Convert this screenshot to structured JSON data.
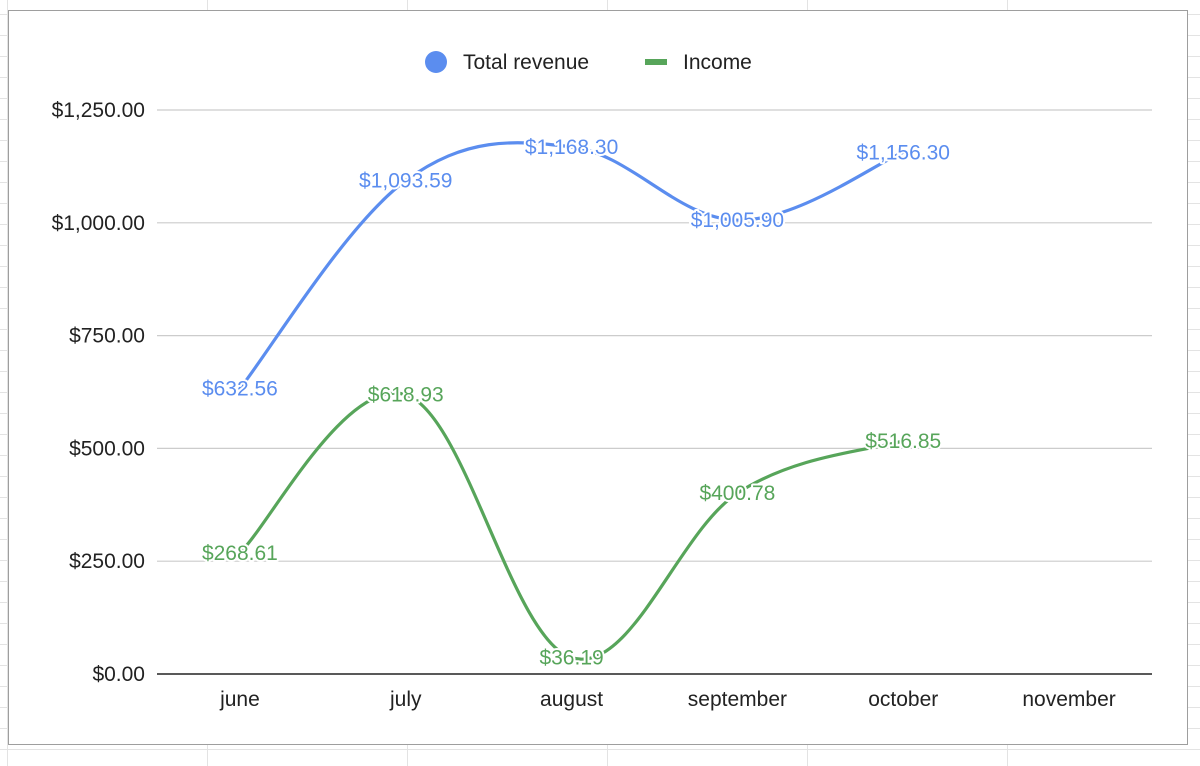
{
  "chart_data": {
    "type": "line",
    "smooth": true,
    "categories": [
      "june",
      "july",
      "august",
      "september",
      "october",
      "november"
    ],
    "series": [
      {
        "name": "Total revenue",
        "color": "#5b8def",
        "legend_marker": "circle",
        "values": [
          632.56,
          1093.59,
          1168.3,
          1005.9,
          1156.3,
          null
        ],
        "labels": [
          "$632.56",
          "$1,093.59",
          "$1,168.30",
          "$1,005.90",
          "$1,156.30",
          null
        ]
      },
      {
        "name": "Income",
        "color": "#57a55a",
        "legend_marker": "line",
        "values": [
          268.61,
          618.93,
          36.19,
          400.78,
          516.85,
          null
        ],
        "labels": [
          "$268.61",
          "$618.93",
          "$36.19",
          "$400.78",
          "$516.85",
          null
        ]
      }
    ],
    "y_ticks": [
      0,
      250,
      500,
      750,
      1000,
      1250
    ],
    "y_tick_labels": [
      "$0.00",
      "$250.00",
      "$500.00",
      "$750.00",
      "$1,000.00",
      "$1,250.00"
    ],
    "ylim": [
      0,
      1250
    ],
    "grid": true,
    "legend_position": "top-center",
    "colors": {
      "grid": "#cccccc",
      "axis": "#222222",
      "text": "#222222"
    }
  }
}
